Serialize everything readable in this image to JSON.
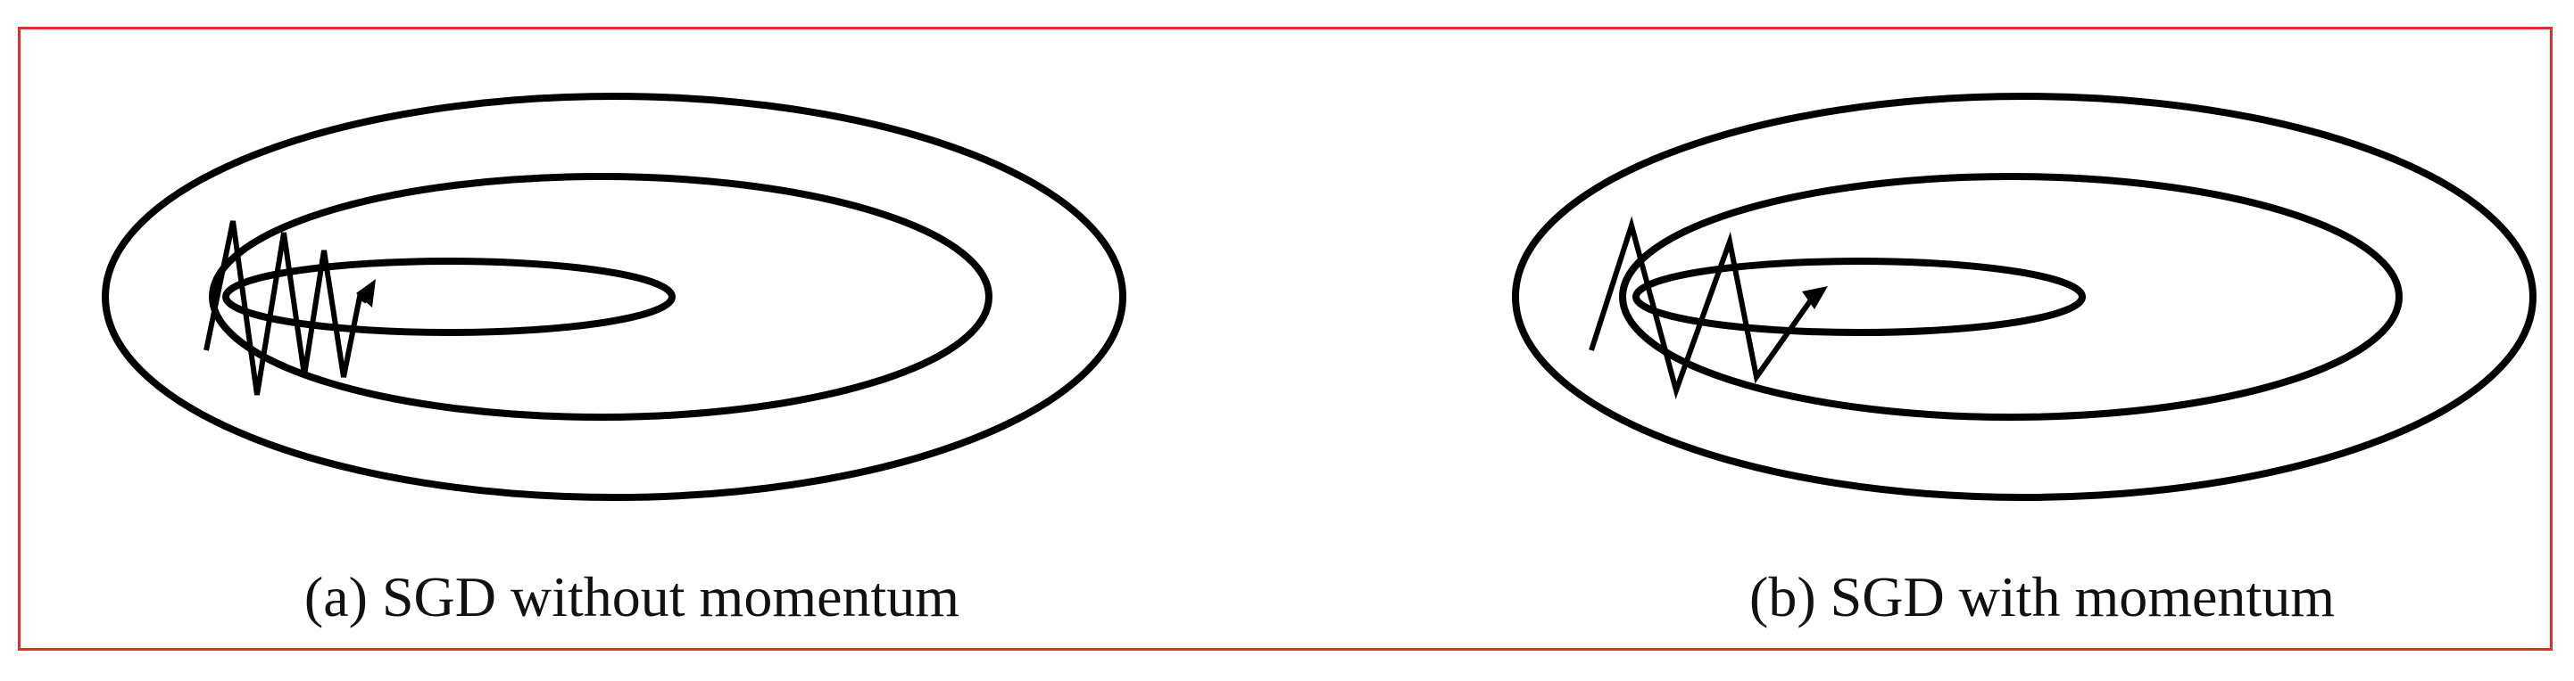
{
  "figure": {
    "frame_color": "#e0302a",
    "line_color": "#000000",
    "panels": [
      {
        "id": "a",
        "caption": "(a) SGD without momentum",
        "trajectory": "zigzag-many-small-steps"
      },
      {
        "id": "b",
        "caption": "(b) SGD with momentum",
        "trajectory": "zigzag-few-large-steps"
      }
    ]
  }
}
